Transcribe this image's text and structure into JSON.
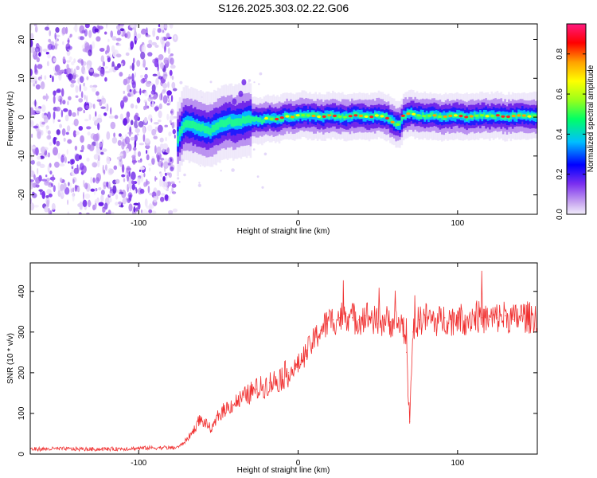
{
  "figure_title": "S126.2025.303.02.22.G06",
  "chart_data": [
    {
      "id": "spectrogram",
      "type": "heatmap",
      "title": "",
      "xlabel": "Height of straight line (km)",
      "ylabel": "Frequency (Hz)",
      "xlim": [
        -168,
        150
      ],
      "ylim": [
        -25,
        24
      ],
      "xticks": [
        -100,
        0,
        100
      ],
      "yticks": [
        -20,
        -10,
        0,
        10,
        20
      ],
      "colorbar": {
        "label": "Normalized spectral amplitude",
        "range": [
          0,
          0.95
        ],
        "ticks": [
          0.0,
          0.2,
          0.4,
          0.6,
          0.8
        ],
        "colormap": [
          "#e8e0f8",
          "#8a2be2",
          "#0000ff",
          "#00bfff",
          "#00ff7f",
          "#adff2f",
          "#ffff00",
          "#ffa500",
          "#ff0000",
          "#ff1493"
        ]
      },
      "noise_region_x": [
        -168,
        -77
      ],
      "ridge_points": [
        [
          -76,
          -5.5
        ],
        [
          -72,
          -1.5
        ],
        [
          -68,
          -2.0
        ],
        [
          -64,
          -2.5
        ],
        [
          -60,
          -3.0
        ],
        [
          -56,
          -3.5
        ],
        [
          -52,
          -2.5
        ],
        [
          -48,
          -1.5
        ],
        [
          -44,
          -1.0
        ],
        [
          -40,
          -1.5
        ],
        [
          -36,
          -1.0
        ],
        [
          -32,
          -0.5
        ],
        [
          -28,
          -0.5
        ],
        [
          -24,
          -1.0
        ],
        [
          -20,
          -0.3
        ],
        [
          -16,
          -0.5
        ],
        [
          -12,
          -0.5
        ],
        [
          -8,
          0.3
        ],
        [
          -4,
          0.0
        ],
        [
          0,
          0.5
        ],
        [
          5,
          0.5
        ],
        [
          10,
          0.3
        ],
        [
          15,
          0.0
        ],
        [
          20,
          0.5
        ],
        [
          25,
          0.2
        ],
        [
          30,
          0.0
        ],
        [
          35,
          0.5
        ],
        [
          40,
          0.3
        ],
        [
          45,
          0.0
        ],
        [
          50,
          0.5
        ],
        [
          55,
          0.0
        ],
        [
          60,
          -1.5
        ],
        [
          63,
          -2.0
        ],
        [
          66,
          0.5
        ],
        [
          70,
          1.0
        ],
        [
          75,
          0.5
        ],
        [
          80,
          0.2
        ],
        [
          85,
          0.5
        ],
        [
          90,
          0.0
        ],
        [
          95,
          0.3
        ],
        [
          100,
          0.5
        ],
        [
          105,
          0.0
        ],
        [
          110,
          0.3
        ],
        [
          115,
          0.5
        ],
        [
          120,
          0.2
        ],
        [
          125,
          0.5
        ],
        [
          130,
          0.0
        ],
        [
          135,
          0.3
        ],
        [
          140,
          0.5
        ],
        [
          145,
          0.2
        ],
        [
          150,
          0.3
        ]
      ]
    },
    {
      "id": "snr",
      "type": "line",
      "title": "",
      "xlabel": "Height of straight line (km)",
      "ylabel": "SNR (10 * v/v)",
      "xlim": [
        -168,
        150
      ],
      "ylim": [
        0,
        470
      ],
      "xticks": [
        -100,
        0,
        100
      ],
      "yticks": [
        0,
        100,
        200,
        300,
        400
      ],
      "color": "#f03030",
      "series": [
        {
          "name": "SNR",
          "x": [
            -168,
            -150,
            -130,
            -110,
            -95,
            -85,
            -78,
            -74,
            -70,
            -66,
            -62,
            -58,
            -54,
            -50,
            -46,
            -42,
            -38,
            -34,
            -30,
            -26,
            -22,
            -18,
            -14,
            -10,
            -6,
            -2,
            2,
            6,
            10,
            14,
            18,
            22,
            26,
            30,
            34,
            38,
            42,
            46,
            50,
            54,
            58,
            62,
            66,
            68,
            70,
            72,
            76,
            80,
            84,
            88,
            92,
            96,
            100,
            105,
            110,
            115,
            120,
            125,
            130,
            135,
            140,
            145,
            150
          ],
          "y": [
            12,
            13,
            12,
            13,
            15,
            16,
            15,
            20,
            35,
            55,
            85,
            75,
            60,
            95,
            110,
            120,
            130,
            140,
            150,
            160,
            165,
            175,
            180,
            190,
            200,
            210,
            230,
            255,
            280,
            305,
            320,
            330,
            335,
            345,
            335,
            330,
            340,
            335,
            320,
            330,
            325,
            320,
            320,
            250,
            80,
            300,
            330,
            335,
            330,
            325,
            335,
            330,
            335,
            330,
            340,
            335,
            330,
            335,
            340,
            330,
            340,
            335,
            340
          ]
        }
      ]
    }
  ]
}
